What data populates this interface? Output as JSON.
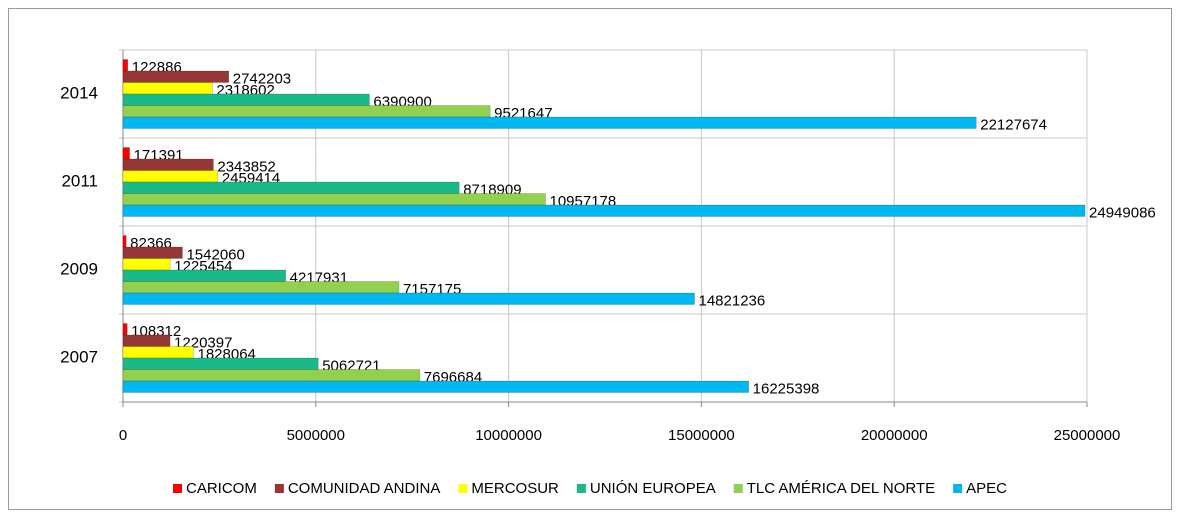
{
  "chart_data": {
    "type": "bar",
    "orientation": "horizontal",
    "categories": [
      "2007",
      "2009",
      "2011",
      "2014"
    ],
    "series": [
      {
        "name": "CARICOM",
        "color": "#ff0000",
        "values": [
          108312,
          82366,
          171391,
          122886
        ]
      },
      {
        "name": "COMUNIDAD ANDINA",
        "color": "#953735",
        "values": [
          1220397,
          1542060,
          2343852,
          2742203
        ]
      },
      {
        "name": "MERCOSUR",
        "color": "#ffff00",
        "values": [
          1828064,
          1225454,
          2459414,
          2318602
        ]
      },
      {
        "name": "UNIÓN EUROPEA",
        "color": "#1ab98a",
        "values": [
          5062721,
          4217931,
          8718909,
          6390900
        ]
      },
      {
        "name": "TLC AMÉRICA DEL NORTE",
        "color": "#92d050",
        "values": [
          7696684,
          7157175,
          10957178,
          9521647
        ]
      },
      {
        "name": "APEC",
        "color": "#00b7ef",
        "values": [
          16225398,
          14821236,
          24949086,
          22127674
        ]
      }
    ],
    "xlim": [
      0,
      25000000
    ],
    "xticks": [
      0,
      5000000,
      10000000,
      15000000,
      20000000,
      25000000
    ],
    "grid": true,
    "legend": "bottom"
  }
}
